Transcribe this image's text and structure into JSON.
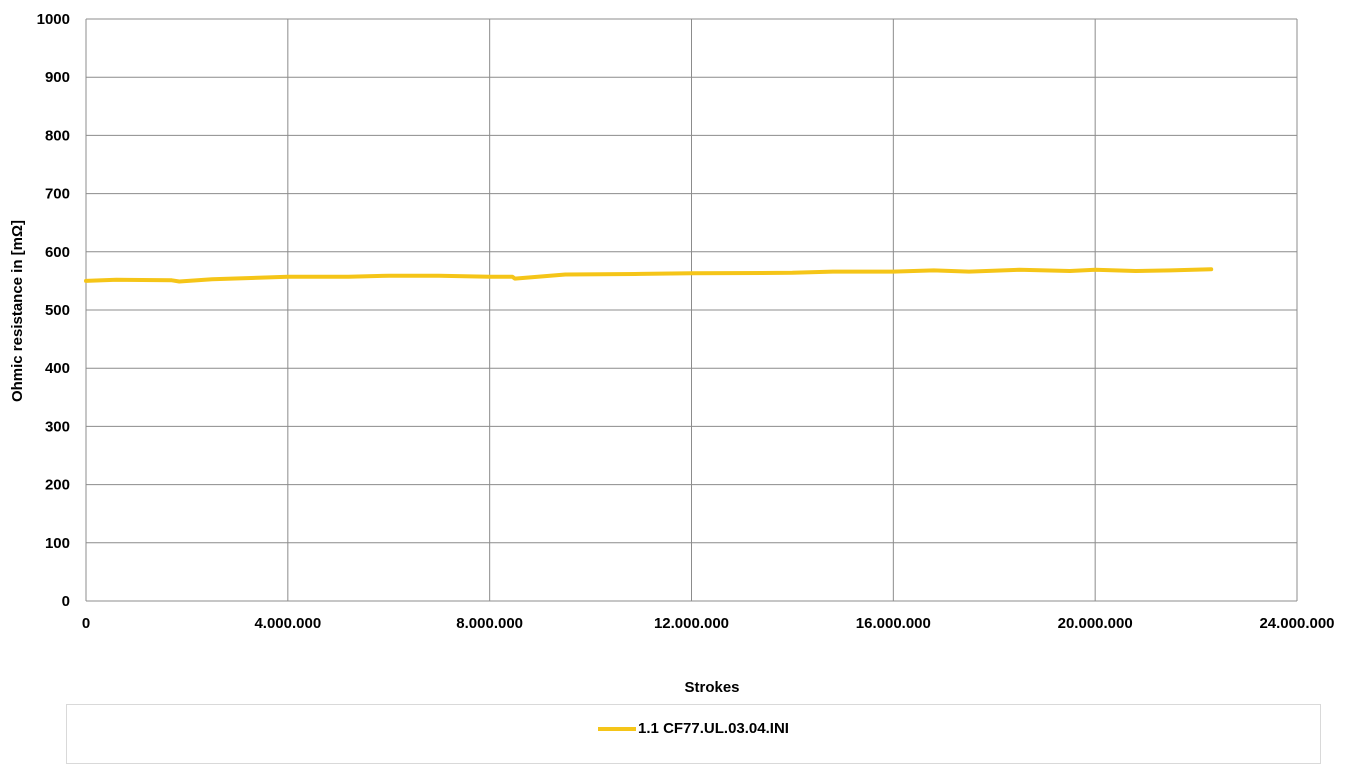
{
  "chart_data": {
    "type": "line",
    "xlabel": "Strokes",
    "ylabel": "Ohmic resistance in [mΩ]",
    "xlim": [
      0,
      24000000
    ],
    "ylim": [
      0,
      1000
    ],
    "x_ticks": [
      0,
      4000000,
      8000000,
      12000000,
      16000000,
      20000000,
      24000000
    ],
    "x_tick_labels": [
      "0",
      "4.000.000",
      "8.000.000",
      "12.000.000",
      "16.000.000",
      "20.000.000",
      "24.000.000"
    ],
    "y_ticks": [
      0,
      100,
      200,
      300,
      400,
      500,
      600,
      700,
      800,
      900,
      1000
    ],
    "y_tick_labels": [
      "0",
      "100",
      "200",
      "300",
      "400",
      "500",
      "600",
      "700",
      "800",
      "900",
      "1000"
    ],
    "grid": true,
    "legend_position": "bottom",
    "series": [
      {
        "name": "1.1 CF77.UL.03.04.INI",
        "color": "#f5c518",
        "x": [
          0,
          600000,
          1700000,
          1850000,
          2500000,
          4000000,
          5200000,
          6000000,
          7000000,
          8000000,
          8450000,
          8500000,
          9500000,
          11000000,
          12000000,
          14000000,
          14800000,
          16000000,
          16800000,
          17500000,
          18500000,
          19500000,
          20000000,
          20800000,
          21500000,
          22300000
        ],
        "y": [
          550,
          552,
          551,
          549,
          553,
          557,
          557,
          559,
          559,
          557,
          557,
          554,
          561,
          562,
          563,
          564,
          566,
          566,
          568,
          566,
          569,
          567,
          569,
          567,
          568,
          570
        ]
      }
    ]
  }
}
